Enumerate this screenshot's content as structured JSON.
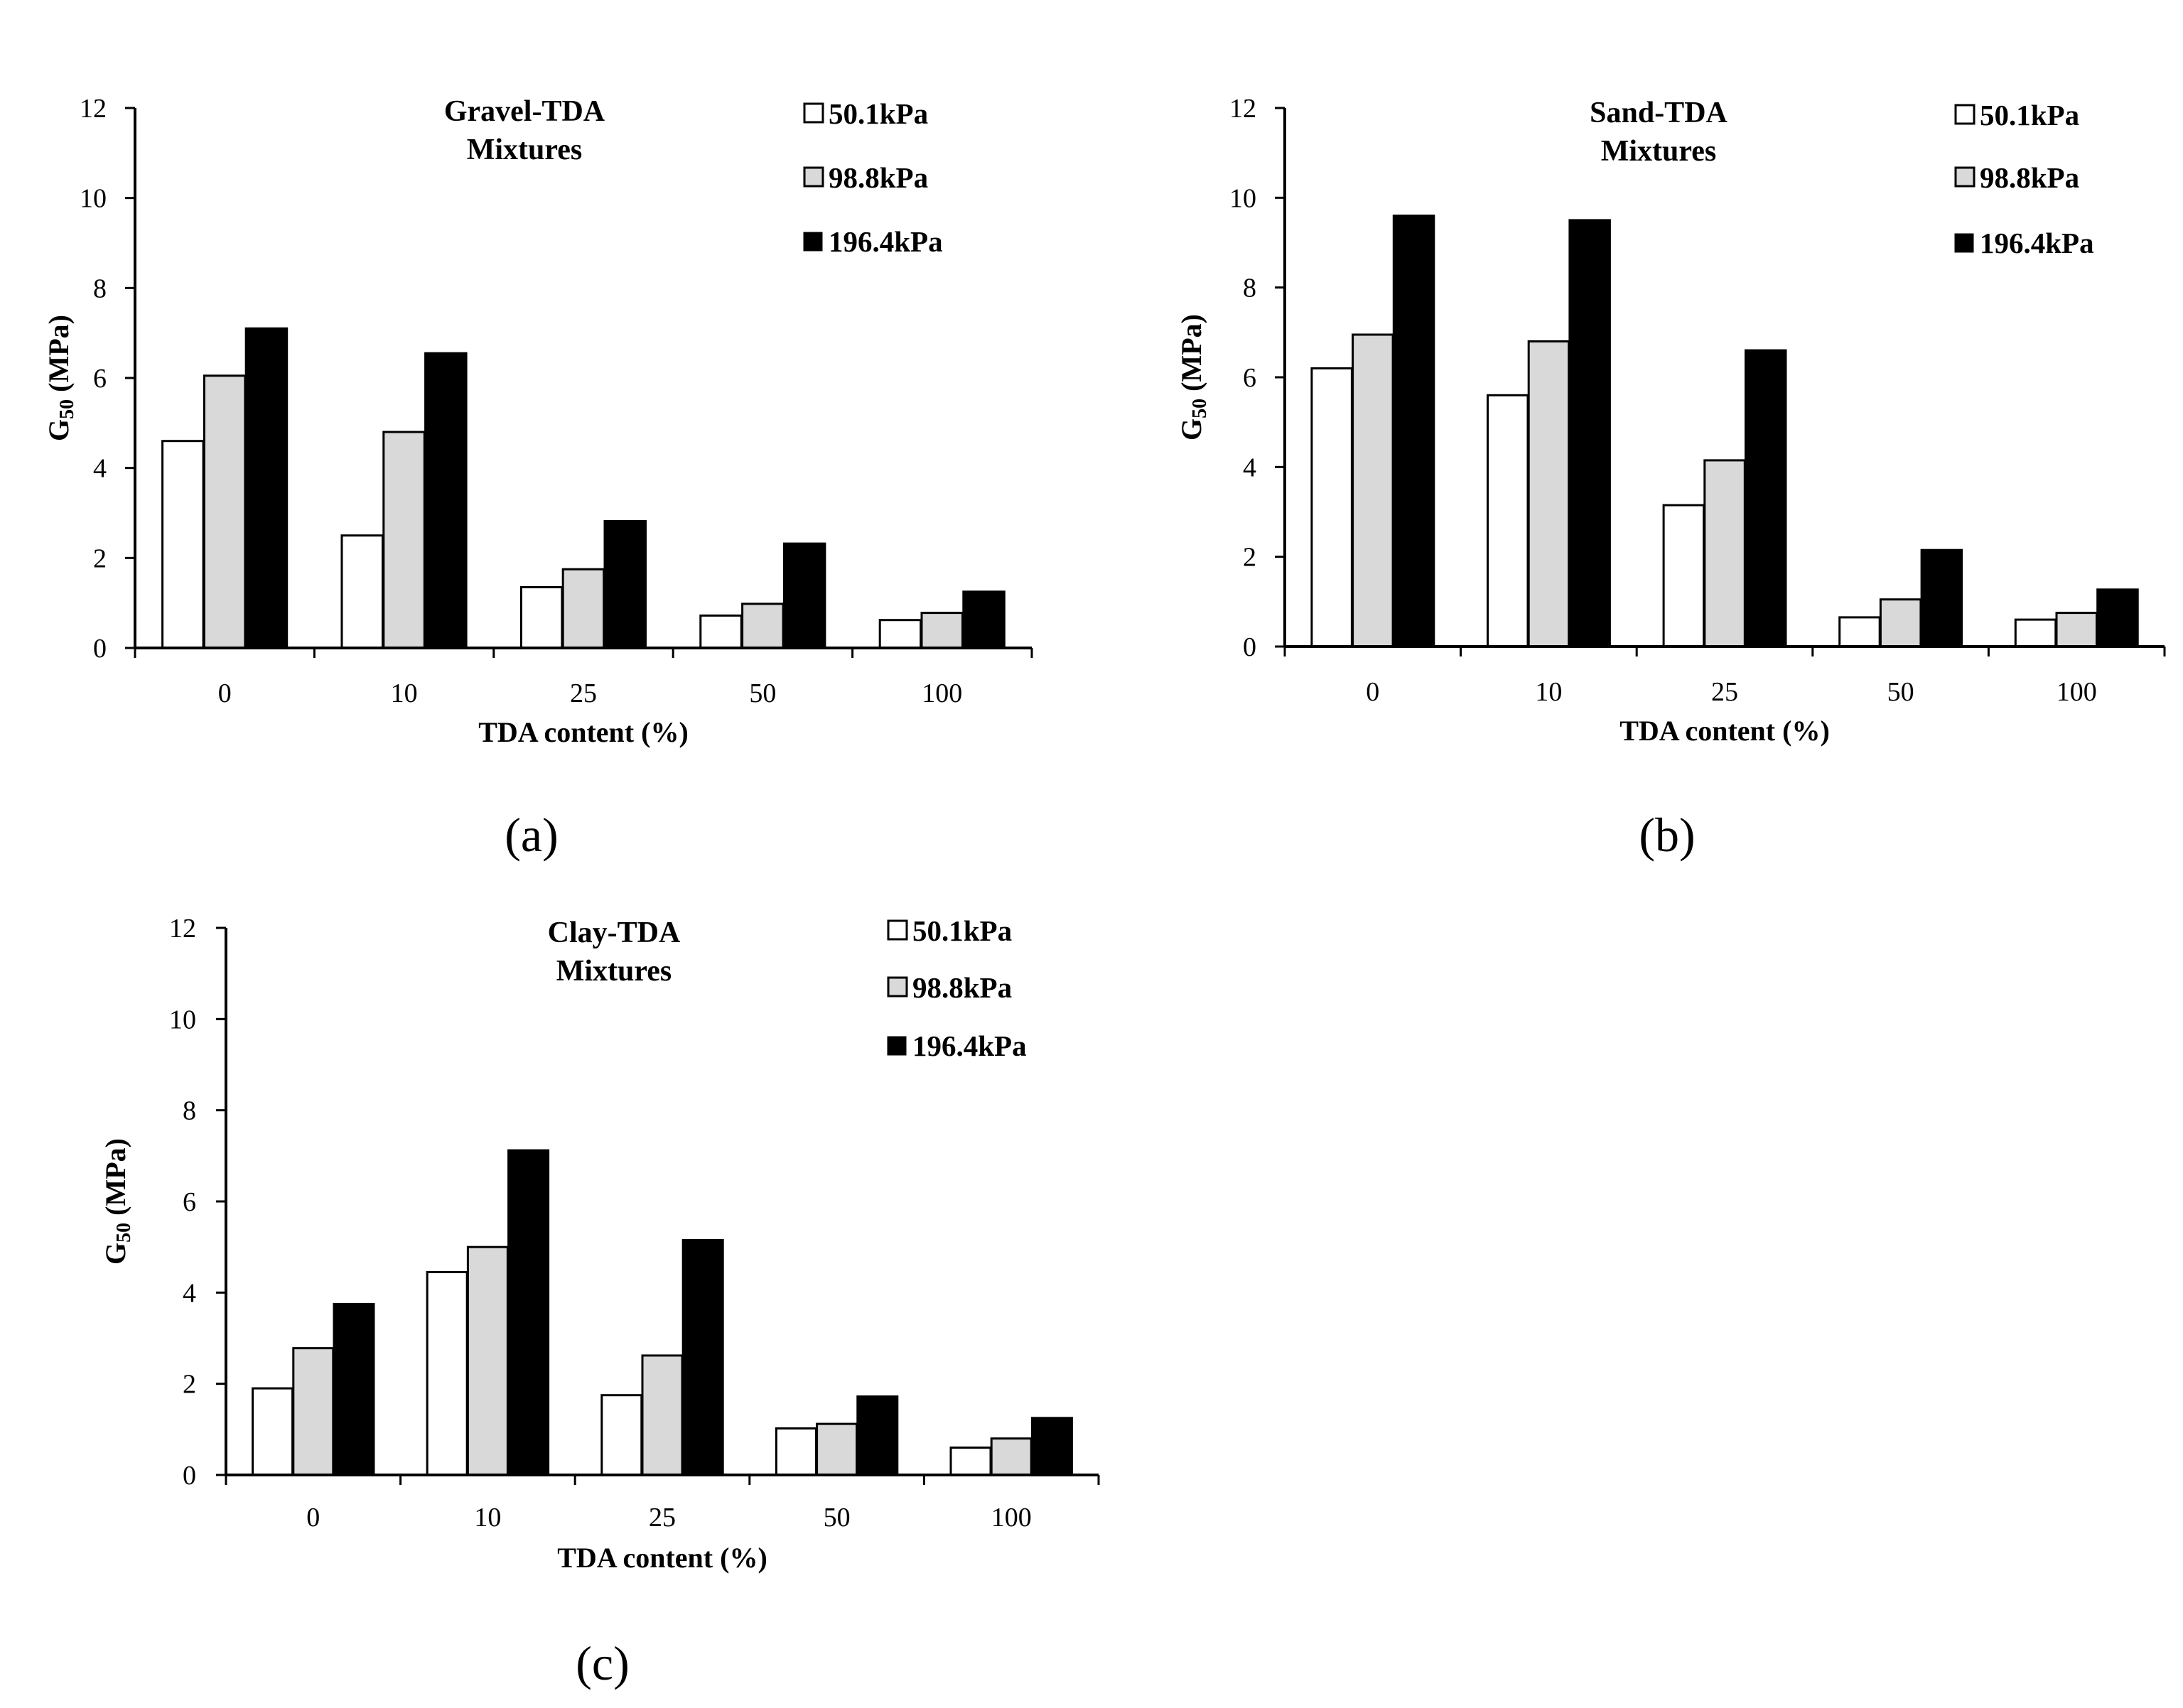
{
  "figure": {
    "panels": [
      {
        "label": "(a)"
      },
      {
        "label": "(b)"
      },
      {
        "label": "(c)"
      }
    ]
  },
  "chart_data": [
    {
      "type": "bar",
      "title": [
        "Gravel-TDA",
        "Mixtures"
      ],
      "xlabel": "TDA content (%)",
      "ylabel": "G50 (MPa)",
      "ylabel_main": "G",
      "ylabel_sub": "50",
      "ylabel_unit": " (MPa)",
      "categories": [
        "0",
        "10",
        "25",
        "50",
        "100"
      ],
      "yticks": [
        "0",
        "2",
        "4",
        "6",
        "8",
        "10",
        "12"
      ],
      "ylim": [
        0,
        12
      ],
      "grid": false,
      "legend_position": "top-right",
      "series": [
        {
          "name": "50.1kPa",
          "color": "#ffffff",
          "values": [
            4.6,
            2.5,
            1.35,
            0.72,
            0.62
          ]
        },
        {
          "name": "98.8kPa",
          "color": "#d9d9d9",
          "values": [
            6.05,
            4.8,
            1.75,
            0.98,
            0.78
          ]
        },
        {
          "name": "196.4kPa",
          "color": "#000000",
          "values": [
            7.1,
            6.55,
            2.82,
            2.32,
            1.25
          ]
        }
      ]
    },
    {
      "type": "bar",
      "title": [
        "Sand-TDA",
        "Mixtures"
      ],
      "xlabel": "TDA content (%)",
      "ylabel": "G50 (MPa)",
      "ylabel_main": "G",
      "ylabel_sub": "50",
      "ylabel_unit": " (MPa)",
      "categories": [
        "0",
        "10",
        "25",
        "50",
        "100"
      ],
      "yticks": [
        "0",
        "2",
        "4",
        "6",
        "8",
        "10",
        "12"
      ],
      "ylim": [
        0,
        12
      ],
      "grid": false,
      "legend_position": "top-right",
      "series": [
        {
          "name": "50.1kPa",
          "color": "#ffffff",
          "values": [
            6.2,
            5.6,
            3.15,
            0.65,
            0.6
          ]
        },
        {
          "name": "98.8kPa",
          "color": "#d9d9d9",
          "values": [
            6.95,
            6.8,
            4.15,
            1.05,
            0.75
          ]
        },
        {
          "name": "196.4kPa",
          "color": "#000000",
          "values": [
            9.6,
            9.5,
            6.6,
            2.15,
            1.27
          ]
        }
      ]
    },
    {
      "type": "bar",
      "title": [
        "Clay-TDA",
        "Mixtures"
      ],
      "xlabel": "TDA content (%)",
      "ylabel": "G50 (MPa)",
      "ylabel_main": "G",
      "ylabel_sub": "50",
      "ylabel_unit": " (MPa)",
      "categories": [
        "0",
        "10",
        "25",
        "50",
        "100"
      ],
      "yticks": [
        "0",
        "2",
        "4",
        "6",
        "8",
        "10",
        "12"
      ],
      "ylim": [
        0,
        12
      ],
      "grid": false,
      "legend_position": "top-right",
      "series": [
        {
          "name": "50.1kPa",
          "color": "#ffffff",
          "values": [
            1.9,
            4.45,
            1.75,
            1.02,
            0.6
          ]
        },
        {
          "name": "98.8kPa",
          "color": "#d9d9d9",
          "values": [
            2.78,
            5.0,
            2.62,
            1.12,
            0.8
          ]
        },
        {
          "name": "196.4kPa",
          "color": "#000000",
          "values": [
            3.75,
            7.12,
            5.15,
            1.72,
            1.25
          ]
        }
      ]
    }
  ]
}
